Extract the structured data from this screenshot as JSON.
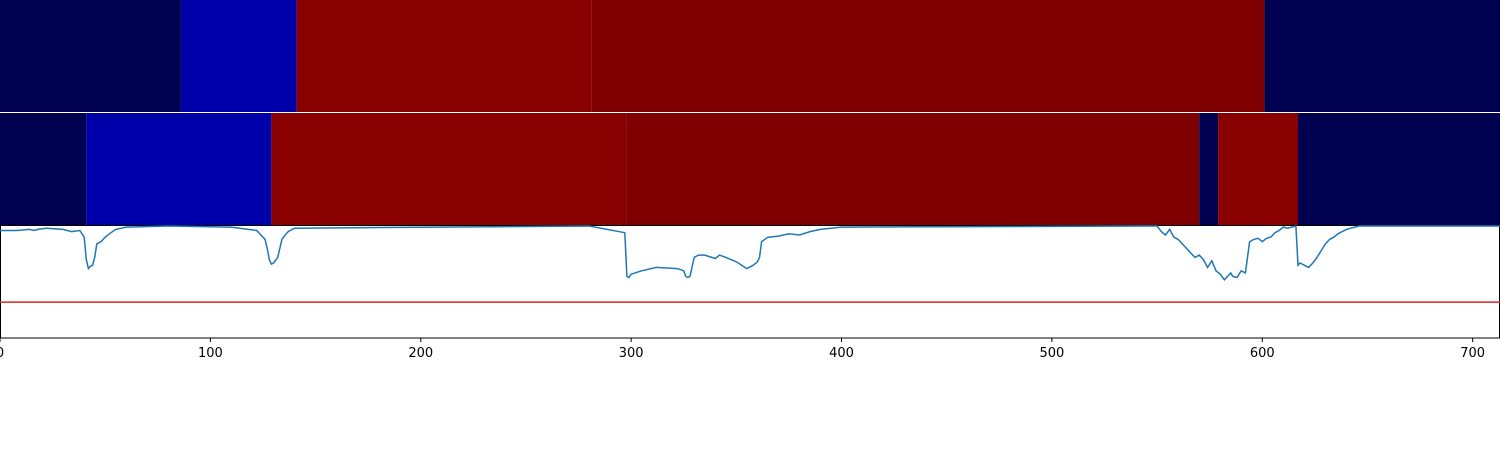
{
  "chart_data": {
    "type": "heatmap",
    "xlim": [
      0,
      713
    ],
    "x_ticks": [
      "0",
      "100",
      "200",
      "300",
      "400",
      "500",
      "600",
      "700"
    ],
    "x_tick_values": [
      0,
      100,
      200,
      300,
      400,
      500,
      600,
      700
    ],
    "colors": {
      "navy": "#000050",
      "blue": "#0000aa",
      "red_bright": "#890000",
      "red_dark": "#7f0000",
      "line": "#1f77b4",
      "threshold": "#d62728"
    },
    "rows": [
      {
        "segments": [
          {
            "start": 0,
            "end": 86,
            "color": "navy"
          },
          {
            "start": 86,
            "end": 141,
            "color": "blue"
          },
          {
            "start": 141,
            "end": 281,
            "color": "red_bright"
          },
          {
            "start": 281,
            "end": 601,
            "color": "red_dark"
          },
          {
            "start": 601,
            "end": 713,
            "color": "navy"
          }
        ]
      },
      {
        "segments": [
          {
            "start": 0,
            "end": 41,
            "color": "navy"
          },
          {
            "start": 41,
            "end": 129,
            "color": "blue"
          },
          {
            "start": 129,
            "end": 298,
            "color": "red_bright"
          },
          {
            "start": 298,
            "end": 570,
            "color": "red_dark"
          },
          {
            "start": 570,
            "end": 579,
            "color": "navy"
          },
          {
            "start": 579,
            "end": 617,
            "color": "red_bright"
          },
          {
            "start": 617,
            "end": 713,
            "color": "navy"
          }
        ]
      }
    ],
    "line_panel": {
      "ylim": [
        0,
        1
      ],
      "threshold": 0.32,
      "series": {
        "x": [
          0,
          8,
          14,
          16,
          18,
          22,
          30,
          34,
          38,
          40,
          41,
          42,
          43,
          44,
          45,
          46,
          48,
          50,
          52,
          55,
          60,
          80,
          110,
          122,
          124,
          126,
          127,
          128,
          129,
          130,
          132,
          134,
          136,
          137,
          138,
          140,
          280,
          297,
          298,
          299,
          300,
          305,
          312,
          322,
          325,
          326,
          327,
          328,
          330,
          332,
          335,
          340,
          342,
          345,
          350,
          355,
          358,
          360,
          361,
          362,
          365,
          370,
          375,
          380,
          385,
          390,
          400,
          550,
          552,
          554,
          556,
          558,
          560,
          562,
          564,
          566,
          568,
          570,
          572,
          574,
          576,
          578,
          580,
          582,
          584,
          585,
          586,
          588,
          590,
          592,
          594,
          596,
          598,
          600,
          602,
          604,
          606,
          608,
          610,
          612,
          616,
          617,
          618,
          620,
          622,
          624,
          626,
          628,
          630,
          632,
          634,
          636,
          638,
          640,
          642,
          644,
          646,
          650,
          660,
          700,
          713
        ],
        "y": [
          0.96,
          0.96,
          0.97,
          0.96,
          0.97,
          0.98,
          0.97,
          0.95,
          0.96,
          0.9,
          0.7,
          0.62,
          0.64,
          0.65,
          0.72,
          0.84,
          0.86,
          0.9,
          0.93,
          0.97,
          0.99,
          1.0,
          0.99,
          0.96,
          0.92,
          0.88,
          0.8,
          0.7,
          0.66,
          0.67,
          0.72,
          0.88,
          0.93,
          0.95,
          0.96,
          0.98,
          1.0,
          0.94,
          0.55,
          0.54,
          0.57,
          0.6,
          0.63,
          0.62,
          0.6,
          0.55,
          0.54,
          0.55,
          0.72,
          0.74,
          0.74,
          0.71,
          0.74,
          0.72,
          0.68,
          0.62,
          0.65,
          0.68,
          0.72,
          0.86,
          0.9,
          0.91,
          0.93,
          0.92,
          0.95,
          0.97,
          0.99,
          1.0,
          0.95,
          0.92,
          0.97,
          0.9,
          0.88,
          0.84,
          0.8,
          0.76,
          0.72,
          0.74,
          0.7,
          0.63,
          0.69,
          0.6,
          0.57,
          0.52,
          0.56,
          0.58,
          0.55,
          0.54,
          0.6,
          0.58,
          0.86,
          0.88,
          0.89,
          0.86,
          0.89,
          0.9,
          0.94,
          0.96,
          0.99,
          0.98,
          1.02,
          0.65,
          0.67,
          0.65,
          0.63,
          0.67,
          0.72,
          0.78,
          0.84,
          0.88,
          0.9,
          0.93,
          0.95,
          0.97,
          0.98,
          0.99,
          1.0,
          1.0,
          1.0,
          1.0,
          1.0
        ]
      }
    }
  }
}
